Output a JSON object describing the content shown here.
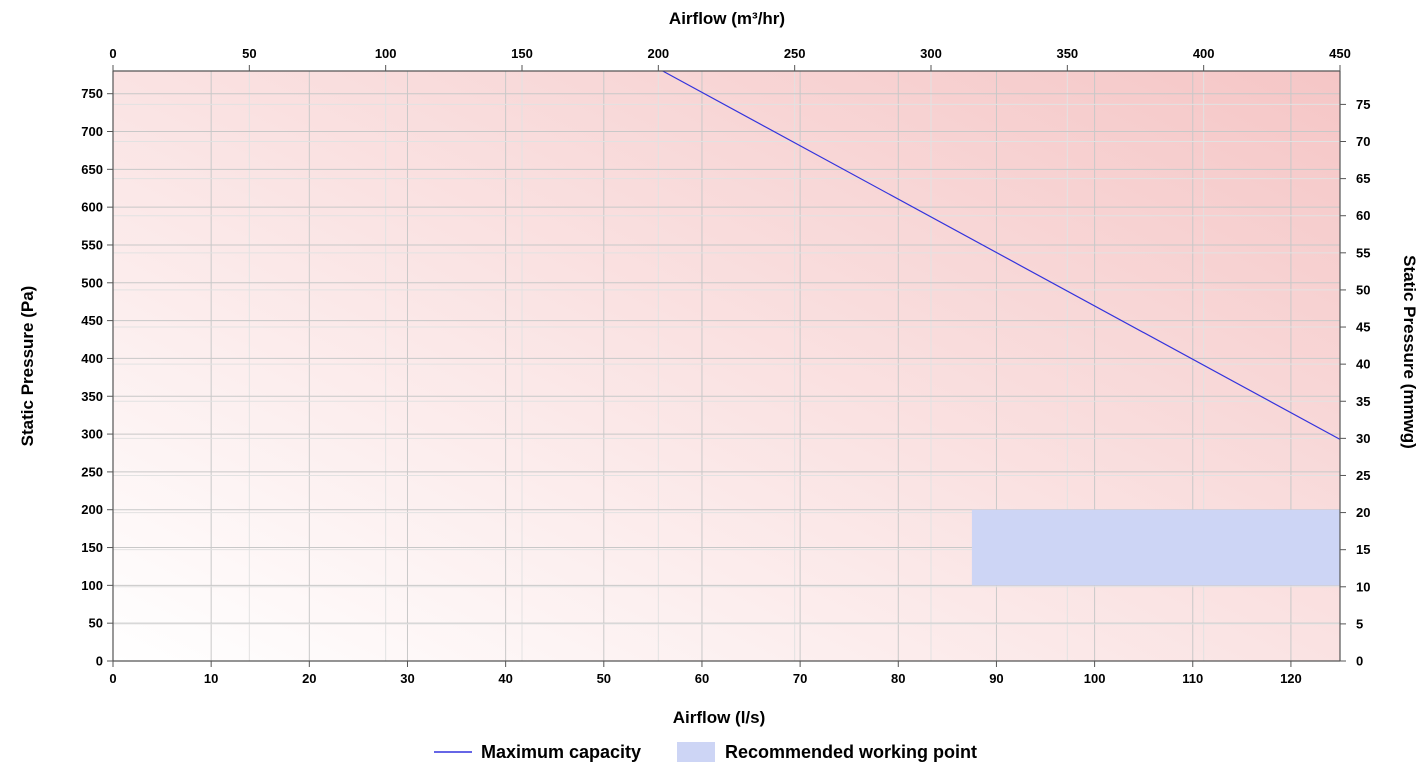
{
  "chart_data": {
    "type": "line",
    "grid": true,
    "background": {
      "from": "#ffffff",
      "to": "#f5c6c6"
    },
    "axes": {
      "x_bottom": {
        "label": "Airflow (l/s)",
        "range": [
          0,
          125
        ],
        "ticks": [
          0,
          10,
          20,
          30,
          40,
          50,
          60,
          70,
          80,
          90,
          100,
          110,
          120
        ]
      },
      "x_top": {
        "label": "Airflow (m³/hr)",
        "range": [
          0,
          450
        ],
        "ticks": [
          0,
          50,
          100,
          150,
          200,
          250,
          300,
          350,
          400,
          450
        ]
      },
      "y_left": {
        "label": "Static Pressure (Pa)",
        "range": [
          0,
          780
        ],
        "ticks": [
          0,
          50,
          100,
          150,
          200,
          250,
          300,
          350,
          400,
          450,
          500,
          550,
          600,
          650,
          700,
          750
        ]
      },
      "y_right": {
        "label": "Static Pressure (mmwg)",
        "range": [
          0,
          79.5
        ],
        "ticks": [
          0,
          5,
          10,
          15,
          20,
          25,
          30,
          35,
          40,
          45,
          50,
          55,
          60,
          65,
          70,
          75
        ]
      }
    },
    "series": [
      {
        "name": "Maximum capacity",
        "kind": "line",
        "color": "#3333dd",
        "x": [
          56,
          125
        ],
        "y": [
          780,
          293
        ]
      },
      {
        "name": "Recommended working point",
        "kind": "area",
        "color": "#cdd5f5",
        "x_range": [
          87.5,
          125
        ],
        "y_range": [
          100,
          200
        ]
      }
    ],
    "legend": {
      "position": "bottom-center"
    }
  }
}
